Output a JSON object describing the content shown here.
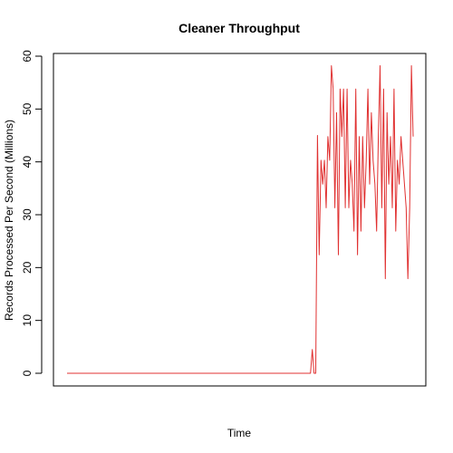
{
  "chart_data": {
    "type": "line",
    "title": "Cleaner Throughput",
    "xlabel": "Time",
    "ylabel": "Records Processed Per Second (Millions)",
    "ylim": [
      0,
      60
    ],
    "yticks": [
      "0",
      "10",
      "20",
      "30",
      "40",
      "50",
      "60"
    ],
    "x_ticks_shown": false,
    "grid": false,
    "legend": "none",
    "series": [
      {
        "color": "#e03030",
        "points": [
          [
            0,
            0
          ],
          [
            140,
            0
          ],
          [
            141,
            4.5
          ],
          [
            142,
            0
          ],
          [
            143,
            0
          ],
          [
            144,
            45
          ],
          [
            145,
            22.4
          ],
          [
            146,
            40.3
          ],
          [
            147,
            35.8
          ],
          [
            148,
            40.3
          ],
          [
            149,
            31.3
          ],
          [
            150,
            44.8
          ],
          [
            151,
            40.3
          ],
          [
            152,
            58.2
          ],
          [
            153,
            53.8
          ],
          [
            154,
            31.3
          ],
          [
            155,
            49.3
          ],
          [
            156,
            22.4
          ],
          [
            157,
            53.8
          ],
          [
            158,
            44.8
          ],
          [
            159,
            53.8
          ],
          [
            160,
            31.3
          ],
          [
            161,
            53.8
          ],
          [
            162,
            31.3
          ],
          [
            163,
            40.3
          ],
          [
            164,
            35.8
          ],
          [
            165,
            26.9
          ],
          [
            166,
            53.8
          ],
          [
            167,
            22.4
          ],
          [
            168,
            44.8
          ],
          [
            169,
            26.9
          ],
          [
            170,
            44.8
          ],
          [
            171,
            31.3
          ],
          [
            172,
            40.3
          ],
          [
            173,
            53.8
          ],
          [
            174,
            35.8
          ],
          [
            175,
            49.3
          ],
          [
            176,
            40.3
          ],
          [
            177,
            35.8
          ],
          [
            178,
            26.9
          ],
          [
            179,
            44.8
          ],
          [
            180,
            58.2
          ],
          [
            181,
            31.3
          ],
          [
            182,
            53.8
          ],
          [
            183,
            17.9
          ],
          [
            184,
            49.3
          ],
          [
            185,
            35.8
          ],
          [
            186,
            44.8
          ],
          [
            187,
            31.3
          ],
          [
            188,
            53.8
          ],
          [
            189,
            26.9
          ],
          [
            190,
            40.3
          ],
          [
            191,
            35.8
          ],
          [
            192,
            44.8
          ],
          [
            193,
            40.3
          ],
          [
            194,
            35.8
          ],
          [
            195,
            31.3
          ],
          [
            196,
            17.9
          ],
          [
            197,
            31.3
          ],
          [
            198,
            58.2
          ],
          [
            199,
            44.8
          ]
        ]
      }
    ]
  }
}
